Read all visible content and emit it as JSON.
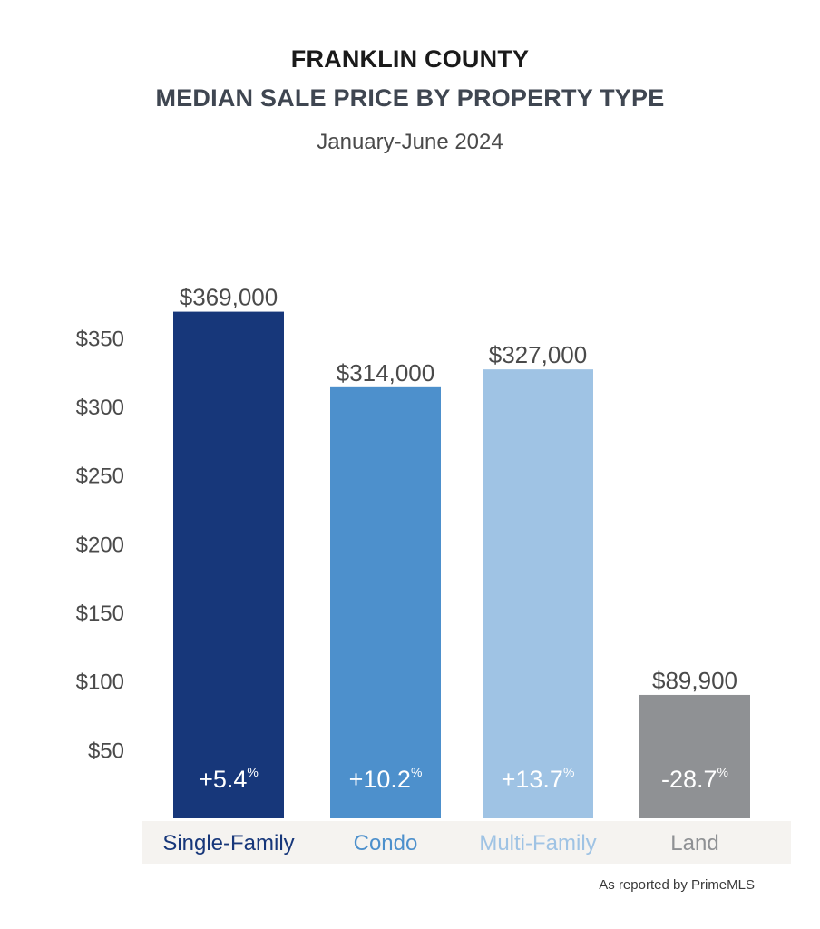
{
  "header": {
    "title_line1": "FRANKLIN COUNTY",
    "title_line2": "MEDIAN SALE PRICE BY PROPERTY TYPE",
    "subtitle": "January-June 2024"
  },
  "footer": {
    "source_note": "As reported by PrimeMLS"
  },
  "chart_data": {
    "type": "bar",
    "title": "FRANKLIN COUNTY MEDIAN SALE PRICE BY PROPERTY TYPE",
    "subtitle": "January-June 2024",
    "categories": [
      "Single-Family",
      "Condo",
      "Multi-Family",
      "Land"
    ],
    "values": [
      369000,
      314000,
      327000,
      89900
    ],
    "value_labels": [
      "$369,000",
      "$314,000",
      "$327,000",
      "$89,900"
    ],
    "change_labels": [
      "+5.4",
      "+10.2",
      "+13.7",
      "-28.7"
    ],
    "change_unit": "%",
    "bar_colors": [
      "#17377a",
      "#4d90cc",
      "#9fc3e4",
      "#8f9194"
    ],
    "label_colors": [
      "#17377a",
      "#4d90cc",
      "#9fc3e4",
      "#8f9194"
    ],
    "category_band_color": "#f5f3f0",
    "yticks": [
      50,
      100,
      150,
      200,
      250,
      300,
      350
    ],
    "ytick_labels": [
      "$50",
      "$100",
      "$150",
      "$200",
      "$250",
      "$300",
      "$350"
    ],
    "ytick_unit_note": "thousands of dollars",
    "ylim": [
      0,
      370000
    ],
    "grid": false,
    "legend": "none"
  }
}
